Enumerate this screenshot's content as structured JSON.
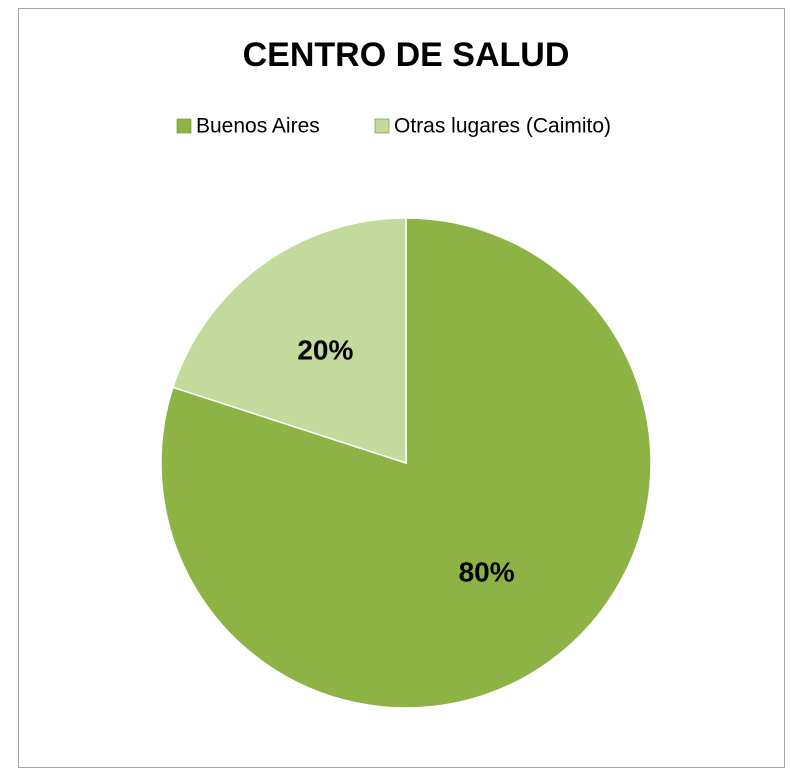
{
  "chart_data": {
    "type": "pie",
    "title": "CENTRO DE SALUD",
    "categories": [
      "Buenos Aires",
      "Otras lugares (Caimito)"
    ],
    "values": [
      80,
      20
    ],
    "value_labels": [
      "80%",
      "20%"
    ],
    "colors": [
      "#8db345",
      "#c4d99c"
    ],
    "legend": "top"
  }
}
